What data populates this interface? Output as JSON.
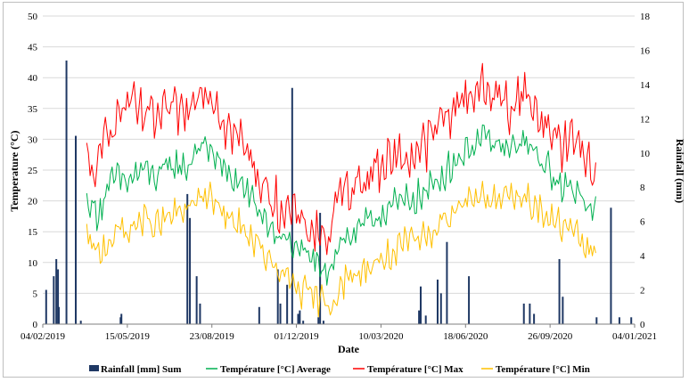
{
  "chart_data": {
    "type": "line",
    "title": "",
    "xlabel": "Date",
    "ylabel": "Temperature (°C)",
    "y2label": "Rainfall (mm)",
    "ylim": [
      0,
      50
    ],
    "y2lim": [
      0,
      18
    ],
    "y_ticks": [
      0,
      5,
      10,
      15,
      20,
      25,
      30,
      35,
      40,
      45,
      50
    ],
    "y2_ticks": [
      0,
      2,
      4,
      6,
      8,
      10,
      12,
      14,
      16,
      18
    ],
    "x_tick_labels": [
      "04/02/2019",
      "15/05/2019",
      "23/08/2019",
      "01/12/2019",
      "10/03/2020",
      "18/06/2020",
      "26/09/2020",
      "04/01/2021"
    ],
    "x_range": [
      "2019-02-04",
      "2021-01-04"
    ],
    "grid": "horizontal",
    "legend_position": "bottom",
    "series": [
      {
        "name": "Rainfall [mm] Sum",
        "type": "bar",
        "axis": "right",
        "color": "#1f3864",
        "x": [
          "2019-02-08",
          "2019-02-17",
          "2019-02-20",
          "2019-02-22",
          "2019-02-23",
          "2019-03-04",
          "2019-03-15",
          "2019-03-21",
          "2019-05-07",
          "2019-05-08",
          "2019-07-25",
          "2019-07-28",
          "2019-08-05",
          "2019-08-09",
          "2019-10-18",
          "2019-11-09",
          "2019-11-12",
          "2019-11-20",
          "2019-11-26",
          "2019-12-03",
          "2019-12-05",
          "2019-12-09",
          "2019-12-27",
          "2019-12-29",
          "2020-01-02",
          "2020-04-24",
          "2020-04-26",
          "2020-05-02",
          "2020-05-16",
          "2020-05-20",
          "2020-05-27",
          "2020-06-22",
          "2020-08-26",
          "2020-09-02",
          "2020-09-07",
          "2020-10-07",
          "2020-10-11",
          "2020-11-20",
          "2020-12-07",
          "2020-12-17",
          "2020-12-31"
        ],
        "values": [
          2.0,
          2.8,
          3.8,
          3.2,
          1.0,
          15.4,
          11.0,
          0.2,
          0.4,
          0.6,
          7.6,
          6.2,
          2.8,
          1.2,
          1.0,
          3.2,
          1.2,
          2.3,
          13.8,
          0.6,
          0.8,
          0.2,
          0.4,
          6.5,
          0.2,
          0.8,
          2.2,
          0.5,
          2.6,
          1.8,
          4.8,
          2.8,
          1.2,
          1.2,
          0.6,
          3.8,
          1.6,
          0.4,
          6.8,
          0.4,
          0.4
        ]
      },
      {
        "name": "Température  [°C] Average",
        "type": "line",
        "axis": "left",
        "color": "#00b050",
        "anchors_x": [
          "2019-03-28",
          "2019-04-10",
          "2019-04-20",
          "2019-05-01",
          "2019-05-15",
          "2019-06-01",
          "2019-06-20",
          "2019-07-10",
          "2019-07-25",
          "2019-08-05",
          "2019-08-25",
          "2019-09-10",
          "2019-09-25",
          "2019-10-10",
          "2019-10-25",
          "2019-11-10",
          "2019-11-25",
          "2019-12-10",
          "2019-12-25",
          "2020-01-10",
          "2020-01-20",
          "2020-02-10",
          "2020-03-01",
          "2020-03-20",
          "2020-04-10",
          "2020-05-01",
          "2020-05-20",
          "2020-06-10",
          "2020-06-25",
          "2020-07-10",
          "2020-07-25",
          "2020-08-10",
          "2020-08-25",
          "2020-09-10",
          "2020-09-25",
          "2020-10-10",
          "2020-10-25",
          "2020-11-10",
          "2020-11-20"
        ],
        "anchors_y": [
          20,
          18,
          21,
          24,
          23,
          25,
          24,
          26,
          25,
          29,
          28,
          24,
          23,
          20,
          17,
          14,
          13,
          11,
          10,
          9,
          13,
          15,
          17,
          19,
          20,
          21,
          24,
          27,
          29,
          30,
          29,
          28,
          30,
          27,
          25,
          22,
          22,
          20,
          18
        ]
      },
      {
        "name": "Température  [°C] Max",
        "type": "line",
        "axis": "left",
        "color": "#ff0000",
        "anchors_x": [
          "2019-03-28",
          "2019-04-10",
          "2019-04-20",
          "2019-05-01",
          "2019-05-15",
          "2019-06-01",
          "2019-06-20",
          "2019-07-10",
          "2019-07-25",
          "2019-08-05",
          "2019-08-25",
          "2019-09-10",
          "2019-09-25",
          "2019-10-10",
          "2019-10-25",
          "2019-11-10",
          "2019-11-25",
          "2019-12-10",
          "2019-12-25",
          "2020-01-10",
          "2020-01-20",
          "2020-02-10",
          "2020-03-01",
          "2020-03-20",
          "2020-04-10",
          "2020-05-01",
          "2020-05-20",
          "2020-06-10",
          "2020-06-25",
          "2020-07-10",
          "2020-07-25",
          "2020-08-10",
          "2020-08-25",
          "2020-09-10",
          "2020-09-25",
          "2020-10-10",
          "2020-10-25",
          "2020-11-10",
          "2020-11-20"
        ],
        "anchors_y": [
          26,
          24,
          32,
          33,
          36,
          34,
          33,
          35,
          34,
          39,
          37,
          32,
          30,
          26,
          22,
          19,
          18,
          16,
          15,
          14,
          21,
          23,
          25,
          27,
          27,
          29,
          33,
          36,
          38,
          38,
          37,
          35,
          38,
          34,
          32,
          29,
          30,
          27,
          24
        ]
      },
      {
        "name": "Température  [°C] Min",
        "type": "line",
        "axis": "left",
        "color": "#ffc000",
        "anchors_x": [
          "2019-03-28",
          "2019-04-10",
          "2019-04-20",
          "2019-05-01",
          "2019-05-15",
          "2019-06-01",
          "2019-06-20",
          "2019-07-10",
          "2019-07-25",
          "2019-08-05",
          "2019-08-25",
          "2019-09-10",
          "2019-09-25",
          "2019-10-10",
          "2019-10-25",
          "2019-11-10",
          "2019-11-25",
          "2019-12-10",
          "2019-12-25",
          "2020-01-10",
          "2020-01-20",
          "2020-02-10",
          "2020-03-01",
          "2020-03-20",
          "2020-04-10",
          "2020-05-01",
          "2020-05-20",
          "2020-06-10",
          "2020-06-25",
          "2020-07-10",
          "2020-07-25",
          "2020-08-10",
          "2020-08-25",
          "2020-09-10",
          "2020-09-25",
          "2020-10-10",
          "2020-10-25",
          "2020-11-10",
          "2020-11-20"
        ],
        "anchors_y": [
          14,
          11,
          13,
          15,
          15,
          17,
          16,
          18,
          18,
          21,
          20,
          17,
          16,
          14,
          11,
          8,
          7,
          5,
          4,
          3,
          6,
          8,
          10,
          11,
          13,
          14,
          17,
          19,
          21,
          21,
          20,
          20,
          21,
          19,
          17,
          16,
          15,
          12,
          12
        ]
      }
    ]
  }
}
